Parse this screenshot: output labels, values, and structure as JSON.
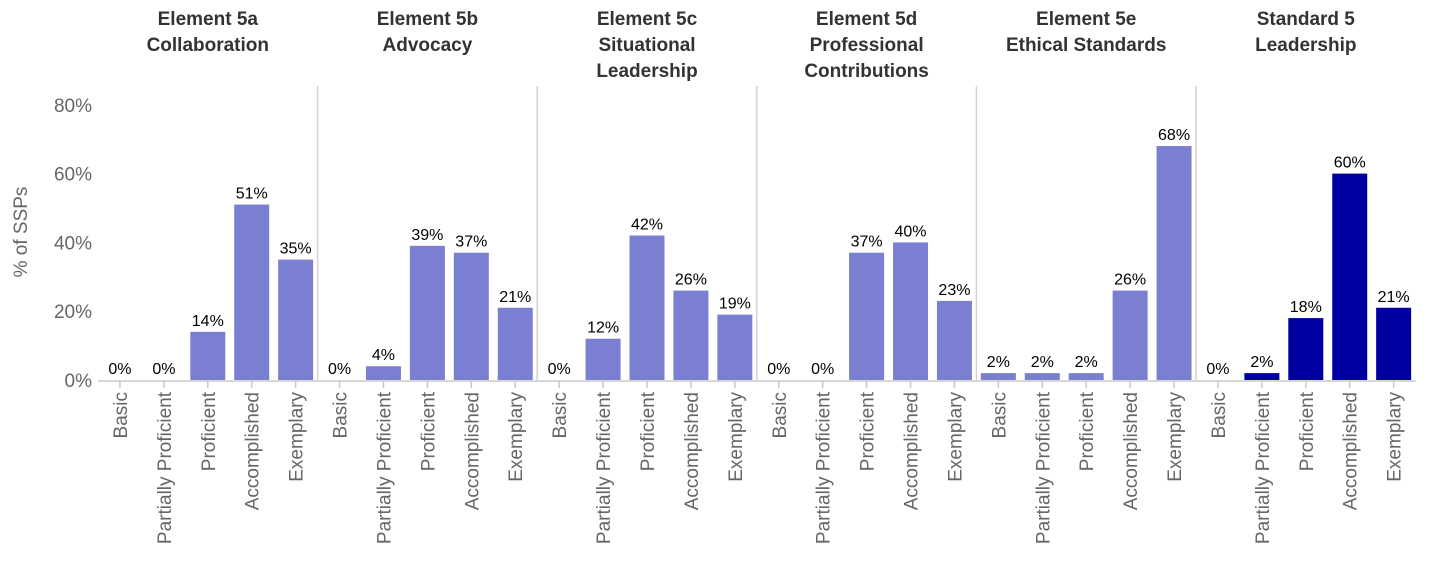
{
  "chart_data": {
    "type": "bar",
    "ylabel": "% of SSPs",
    "ylim": [
      0,
      85
    ],
    "yticks": [
      "0%",
      "20%",
      "40%",
      "60%",
      "80%"
    ],
    "ytick_values": [
      0,
      20,
      40,
      60,
      80
    ],
    "categories": [
      "Basic",
      "Partially Proficient",
      "Proficient",
      "Accomplished",
      "Exemplary"
    ],
    "colors": {
      "element": "#7b7fd1",
      "standard": "#0000a0",
      "divider": "#d3d3d3",
      "axis": "#c8c8c8"
    },
    "panels": [
      {
        "title_lines": [
          "Element 5a",
          "Collaboration"
        ],
        "kind": "element",
        "values": [
          0,
          0,
          14,
          51,
          35
        ],
        "labels": [
          "0%",
          "0%",
          "14%",
          "51%",
          "35%"
        ]
      },
      {
        "title_lines": [
          "Element 5b",
          "Advocacy"
        ],
        "kind": "element",
        "values": [
          0,
          4,
          39,
          37,
          21
        ],
        "labels": [
          "0%",
          "4%",
          "39%",
          "37%",
          "21%"
        ]
      },
      {
        "title_lines": [
          "Element 5c",
          "Situational",
          "Leadership"
        ],
        "kind": "element",
        "values": [
          0,
          12,
          42,
          26,
          19
        ],
        "labels": [
          "0%",
          "12%",
          "42%",
          "26%",
          "19%"
        ]
      },
      {
        "title_lines": [
          "Element 5d",
          "Professional",
          "Contributions"
        ],
        "kind": "element",
        "values": [
          0,
          0,
          37,
          40,
          23
        ],
        "labels": [
          "0%",
          "0%",
          "37%",
          "40%",
          "23%"
        ]
      },
      {
        "title_lines": [
          "Element 5e",
          "Ethical Standards"
        ],
        "kind": "element",
        "values": [
          2,
          2,
          2,
          26,
          68
        ],
        "labels": [
          "2%",
          "2%",
          "2%",
          "26%",
          "68%"
        ]
      },
      {
        "title_lines": [
          "Standard 5",
          "Leadership"
        ],
        "kind": "standard",
        "values": [
          0,
          2,
          18,
          60,
          21
        ],
        "labels": [
          "0%",
          "2%",
          "18%",
          "60%",
          "21%"
        ]
      }
    ]
  }
}
